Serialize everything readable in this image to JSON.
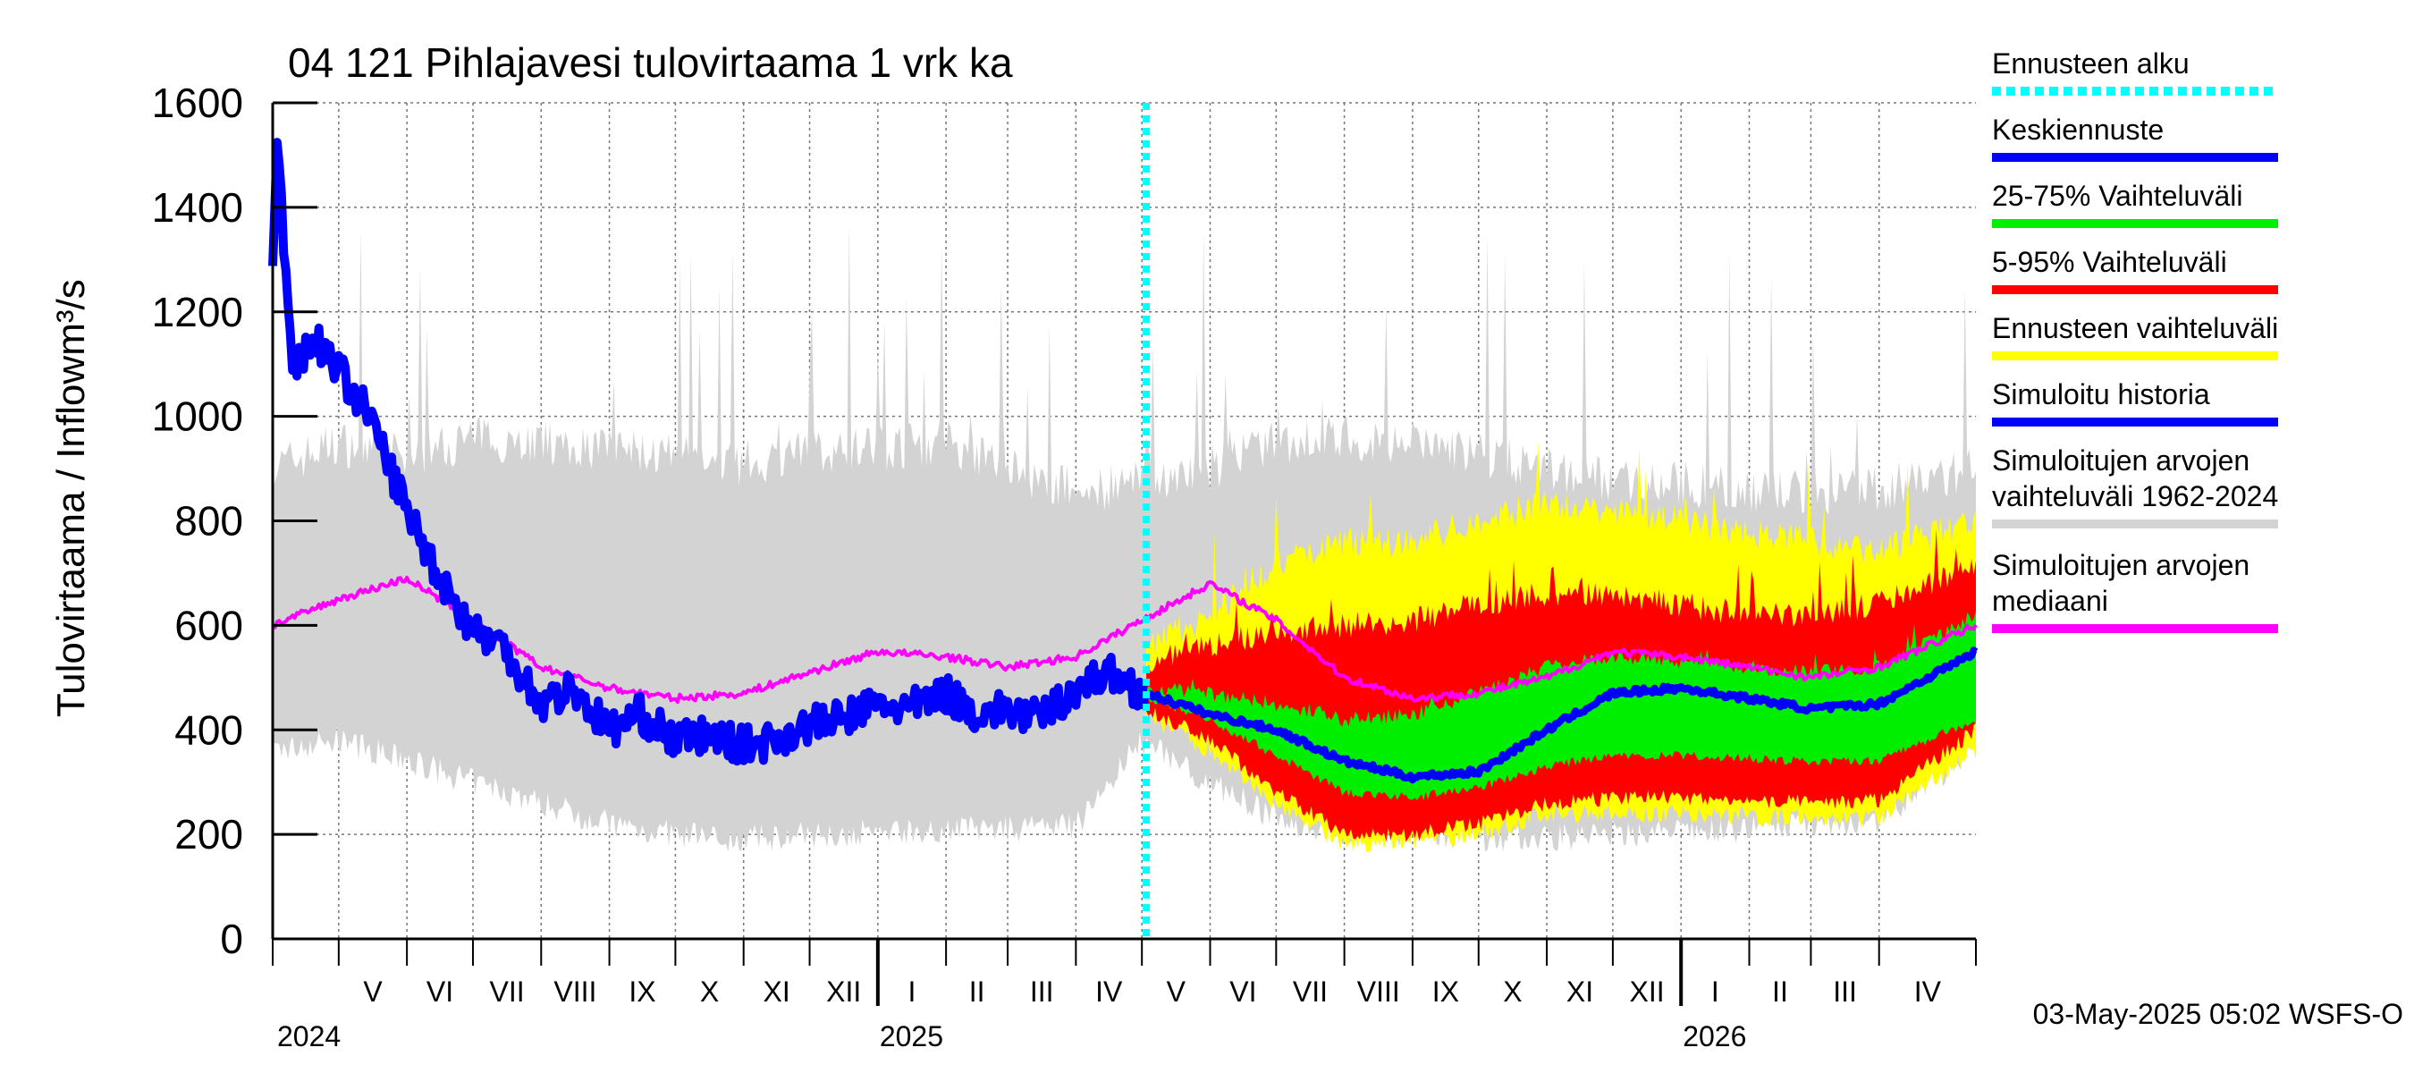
{
  "chart_data": {
    "type": "area",
    "title": "04 121 Pihlajavesi tulovirtaama 1 vrk ka",
    "ylabel": "Tulovirtaama / Inflow",
    "yunit": "m³/s",
    "ylim": [
      0,
      1600
    ],
    "yticks": [
      0,
      200,
      400,
      600,
      800,
      1000,
      1200,
      1400,
      1600
    ],
    "xlim": [
      "2024-04-01",
      "2026-05-15"
    ],
    "forecast_start": "2025-05-03",
    "grid": true,
    "months": [
      {
        "label": "V",
        "date": "2024-05-01"
      },
      {
        "label": "VI",
        "date": "2024-06-01"
      },
      {
        "label": "VII",
        "date": "2024-07-01"
      },
      {
        "label": "VIII",
        "date": "2024-08-01"
      },
      {
        "label": "IX",
        "date": "2024-09-01"
      },
      {
        "label": "X",
        "date": "2024-10-01"
      },
      {
        "label": "XI",
        "date": "2024-11-01"
      },
      {
        "label": "XII",
        "date": "2024-12-01"
      },
      {
        "label": "I",
        "date": "2025-01-01"
      },
      {
        "label": "II",
        "date": "2025-02-01"
      },
      {
        "label": "III",
        "date": "2025-03-01"
      },
      {
        "label": "IV",
        "date": "2025-04-01"
      },
      {
        "label": "V",
        "date": "2025-05-01"
      },
      {
        "label": "VI",
        "date": "2025-06-01"
      },
      {
        "label": "VII",
        "date": "2025-07-01"
      },
      {
        "label": "VIII",
        "date": "2025-08-01"
      },
      {
        "label": "IX",
        "date": "2025-09-01"
      },
      {
        "label": "X",
        "date": "2025-10-01"
      },
      {
        "label": "XI",
        "date": "2025-11-01"
      },
      {
        "label": "XII",
        "date": "2025-12-01"
      },
      {
        "label": "I",
        "date": "2026-01-01"
      },
      {
        "label": "II",
        "date": "2026-02-01"
      },
      {
        "label": "III",
        "date": "2026-03-01"
      },
      {
        "label": "IV",
        "date": "2026-04-01"
      }
    ],
    "years": [
      {
        "label": "2024",
        "date": "2024-05-01"
      },
      {
        "label": "2025",
        "date": "2025-01-01"
      },
      {
        "label": "2026",
        "date": "2026-01-01"
      }
    ],
    "series": [
      {
        "name": "Simuloitujen arvojen vaihteluväli 1962-2024",
        "color": "#d3d3d3",
        "x": [
          "2024-04-01",
          "2024-05-01",
          "2024-06-01",
          "2024-07-01",
          "2024-08-01",
          "2024-09-01",
          "2024-10-01",
          "2024-11-01",
          "2024-12-01",
          "2025-01-01",
          "2025-02-01",
          "2025-03-01",
          "2025-04-01",
          "2025-05-01",
          "2025-06-01",
          "2025-07-01",
          "2025-08-01",
          "2025-09-01",
          "2025-10-01",
          "2025-11-01",
          "2025-12-01",
          "2026-01-01",
          "2026-02-01",
          "2026-03-01",
          "2026-04-01",
          "2026-05-15"
        ],
        "low": [
          360,
          380,
          340,
          300,
          260,
          220,
          200,
          190,
          200,
          205,
          210,
          210,
          215,
          380,
          300,
          230,
          200,
          200,
          190,
          195,
          200,
          205,
          210,
          215,
          230,
          360
        ],
        "high": [
          900,
          950,
          920,
          960,
          950,
          940,
          920,
          910,
          930,
          940,
          950,
          900,
          860,
          870,
          900,
          950,
          960,
          950,
          930,
          900,
          880,
          870,
          860,
          850,
          860,
          900
        ]
      },
      {
        "name": "Ennusteen vaihteluväli",
        "color": "#ffff00",
        "x": [
          "2025-05-03",
          "2025-06-01",
          "2025-07-01",
          "2025-08-01",
          "2025-09-01",
          "2025-10-01",
          "2025-11-01",
          "2025-12-01",
          "2026-01-01",
          "2026-02-01",
          "2026-03-01",
          "2026-04-01",
          "2026-05-15"
        ],
        "low": [
          430,
          360,
          260,
          180,
          190,
          200,
          240,
          240,
          240,
          235,
          230,
          230,
          360
        ],
        "high": [
          560,
          620,
          720,
          760,
          760,
          800,
          830,
          820,
          800,
          780,
          760,
          740,
          800
        ]
      },
      {
        "name": "5-95% Vaihteluväli",
        "color": "#ff0000",
        "x": [
          "2025-05-03",
          "2025-06-01",
          "2025-07-01",
          "2025-08-01",
          "2025-09-01",
          "2025-10-01",
          "2025-11-01",
          "2025-12-01",
          "2026-01-01",
          "2026-02-01",
          "2026-03-01",
          "2026-04-01",
          "2026-05-15"
        ],
        "low": [
          440,
          380,
          280,
          200,
          200,
          220,
          260,
          270,
          270,
          265,
          260,
          265,
          400
        ],
        "high": [
          530,
          560,
          590,
          600,
          610,
          640,
          660,
          660,
          640,
          620,
          620,
          640,
          720
        ]
      },
      {
        "name": "25-75% Vaihteluväli",
        "color": "#00ee00",
        "x": [
          "2025-05-03",
          "2025-06-01",
          "2025-07-01",
          "2025-08-01",
          "2025-09-01",
          "2025-10-01",
          "2025-11-01",
          "2025-12-01",
          "2026-01-01",
          "2026-02-01",
          "2026-03-01",
          "2026-04-01",
          "2026-05-15"
        ],
        "low": [
          460,
          420,
          350,
          280,
          270,
          290,
          330,
          350,
          350,
          345,
          340,
          340,
          420
        ],
        "high": [
          480,
          470,
          450,
          420,
          430,
          470,
          520,
          540,
          530,
          520,
          510,
          520,
          620
        ]
      },
      {
        "name": "Keskiennuste",
        "color": "#0000ff",
        "x": [
          "2025-05-03",
          "2025-06-01",
          "2025-07-01",
          "2025-08-01",
          "2025-09-01",
          "2025-10-01",
          "2025-11-01",
          "2025-12-01",
          "2026-01-01",
          "2026-02-01",
          "2026-03-01",
          "2026-04-01",
          "2026-05-15"
        ],
        "y": [
          470,
          430,
          400,
          340,
          310,
          320,
          400,
          470,
          480,
          460,
          440,
          450,
          550
        ]
      },
      {
        "name": "Simuloitu historia",
        "color": "#0000ff",
        "x": [
          "2024-04-01",
          "2024-04-03",
          "2024-04-10",
          "2024-04-20",
          "2024-05-01",
          "2024-05-15",
          "2024-06-01",
          "2024-06-15",
          "2024-07-01",
          "2024-07-15",
          "2024-08-01",
          "2024-08-15",
          "2024-09-01",
          "2024-09-15",
          "2024-10-01",
          "2024-10-15",
          "2024-11-01",
          "2024-11-15",
          "2024-12-01",
          "2024-12-15",
          "2025-01-01",
          "2025-01-15",
          "2025-02-01",
          "2025-02-15",
          "2025-03-01",
          "2025-03-15",
          "2025-04-01",
          "2025-04-15",
          "2025-05-03"
        ],
        "y": [
          1290,
          1520,
          1100,
          1150,
          1090,
          1000,
          820,
          700,
          590,
          560,
          450,
          480,
          400,
          430,
          380,
          390,
          370,
          380,
          410,
          420,
          450,
          440,
          470,
          430,
          440,
          420,
          480,
          510,
          470
        ]
      },
      {
        "name": "Simuloitujen arvojen mediaani",
        "color": "#ff00ff",
        "x": [
          "2024-04-01",
          "2024-05-01",
          "2024-06-01",
          "2024-07-01",
          "2024-08-01",
          "2024-09-01",
          "2024-10-01",
          "2024-11-01",
          "2024-12-01",
          "2025-01-01",
          "2025-02-01",
          "2025-03-01",
          "2025-04-01",
          "2025-05-01",
          "2025-06-01",
          "2025-07-01",
          "2025-08-01",
          "2025-09-01",
          "2025-10-01",
          "2025-11-01",
          "2025-12-01",
          "2026-01-01",
          "2026-02-01",
          "2026-03-01",
          "2026-04-01",
          "2026-05-15"
        ],
        "y": [
          600,
          650,
          690,
          610,
          520,
          480,
          460,
          470,
          510,
          550,
          540,
          520,
          540,
          610,
          680,
          610,
          500,
          460,
          470,
          500,
          550,
          540,
          520,
          500,
          520,
          600
        ]
      }
    ]
  },
  "legend": [
    {
      "label": "Ennusteen alku",
      "color": "#00ffff",
      "style": "dotted"
    },
    {
      "label": "Keskiennuste",
      "color": "#0000ff",
      "style": "solid"
    },
    {
      "label": "25-75% Vaihteluväli",
      "color": "#00ee00",
      "style": "solid"
    },
    {
      "label": "5-95% Vaihteluväli",
      "color": "#ff0000",
      "style": "solid"
    },
    {
      "label": "Ennusteen vaihteluväli",
      "color": "#ffff00",
      "style": "solid"
    },
    {
      "label": "Simuloitu historia",
      "color": "#0000ff",
      "style": "solid"
    },
    {
      "label": "Simuloitujen arvojen vaihteluväli 1962-2024",
      "lines": [
        "Simuloitujen arvojen",
        "vaihteluväli 1962-2024"
      ],
      "color": "#d3d3d3",
      "style": "solid"
    },
    {
      "label": "Simuloitujen arvojen mediaani",
      "lines": [
        "Simuloitujen arvojen",
        "mediaani"
      ],
      "color": "#ff00ff",
      "style": "solid"
    }
  ],
  "footer": "03-May-2025 05:02 WSFS-O"
}
